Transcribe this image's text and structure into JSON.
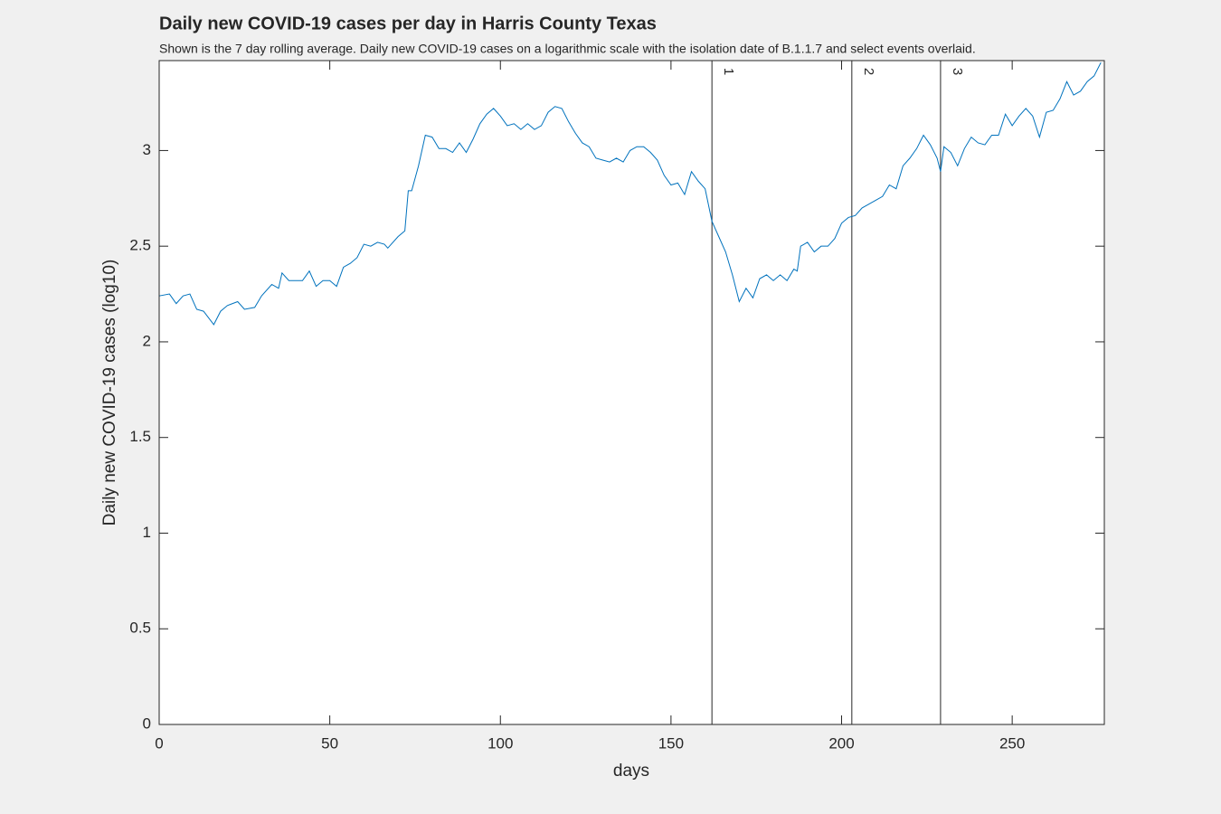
{
  "chart_data": {
    "type": "line",
    "title": "Daily new COVID-19 cases per day in Harris County Texas",
    "subtitle": "Shown is the 7 day rolling average. Daily new COVID-19 cases on a logarithmic scale with the isolation date of B.1.1.7 and select events overlaid.",
    "x_label": "days",
    "y_label": "Daily new COVID-19 cases (log10)",
    "xlim": [
      0,
      277
    ],
    "ylim": [
      0,
      3.47
    ],
    "xticks": [
      0,
      50,
      100,
      150,
      200,
      250
    ],
    "yticks": [
      0,
      0.5,
      1,
      1.5,
      2,
      2.5,
      3
    ],
    "events": [
      {
        "x": 162,
        "label": "1"
      },
      {
        "x": 203,
        "label": "2"
      },
      {
        "x": 229,
        "label": "3"
      }
    ],
    "series": [
      {
        "color": "#0072bd",
        "x": [
          0,
          3,
          5,
          7,
          9,
          11,
          13,
          16,
          18,
          20,
          23,
          25,
          28,
          30,
          33,
          35,
          36,
          38,
          40,
          42,
          44,
          46,
          48,
          50,
          52,
          54,
          56,
          58,
          60,
          62,
          64,
          66,
          67,
          70,
          72,
          73,
          74,
          76,
          78,
          80,
          82,
          84,
          86,
          88,
          90,
          92,
          94,
          96,
          98,
          100,
          102,
          104,
          106,
          108,
          110,
          112,
          114,
          116,
          118,
          120,
          122,
          124,
          126,
          128,
          130,
          132,
          134,
          136,
          138,
          140,
          142,
          144,
          146,
          148,
          150,
          152,
          154,
          156,
          158,
          160,
          162,
          164,
          166,
          168,
          170,
          172,
          174,
          176,
          178,
          180,
          182,
          184,
          186,
          187,
          188,
          190,
          192,
          194,
          196,
          198,
          200,
          202,
          204,
          206,
          208,
          210,
          212,
          214,
          216,
          218,
          220,
          222,
          224,
          226,
          228,
          229,
          230,
          232,
          234,
          236,
          238,
          240,
          242,
          244,
          246,
          248,
          250,
          252,
          254,
          256,
          258,
          260,
          262,
          264,
          266,
          268,
          270,
          272,
          274,
          276
        ],
        "values": [
          2.24,
          2.25,
          2.2,
          2.24,
          2.25,
          2.17,
          2.16,
          2.09,
          2.16,
          2.19,
          2.21,
          2.17,
          2.18,
          2.24,
          2.3,
          2.28,
          2.36,
          2.32,
          2.32,
          2.32,
          2.37,
          2.29,
          2.32,
          2.32,
          2.29,
          2.39,
          2.41,
          2.44,
          2.51,
          2.5,
          2.52,
          2.51,
          2.49,
          2.55,
          2.58,
          2.79,
          2.79,
          2.92,
          3.08,
          3.07,
          3.01,
          3.01,
          2.99,
          3.04,
          2.99,
          3.06,
          3.14,
          3.19,
          3.22,
          3.18,
          3.13,
          3.14,
          3.11,
          3.14,
          3.11,
          3.13,
          3.2,
          3.23,
          3.22,
          3.15,
          3.09,
          3.04,
          3.02,
          2.96,
          2.95,
          2.94,
          2.96,
          2.94,
          3.0,
          3.02,
          3.02,
          2.99,
          2.95,
          2.87,
          2.82,
          2.83,
          2.77,
          2.89,
          2.84,
          2.8,
          2.63,
          2.55,
          2.47,
          2.35,
          2.21,
          2.28,
          2.23,
          2.33,
          2.35,
          2.32,
          2.35,
          2.32,
          2.38,
          2.37,
          2.5,
          2.52,
          2.47,
          2.5,
          2.5,
          2.54,
          2.62,
          2.65,
          2.66,
          2.7,
          2.72,
          2.74,
          2.76,
          2.82,
          2.8,
          2.92,
          2.96,
          3.01,
          3.08,
          3.03,
          2.96,
          2.89,
          3.02,
          2.99,
          2.92,
          3.01,
          3.07,
          3.04,
          3.03,
          3.08,
          3.08,
          3.19,
          3.13,
          3.18,
          3.22,
          3.18,
          3.07,
          3.2,
          3.21,
          3.27,
          3.36,
          3.29,
          3.31,
          3.36,
          3.39,
          3.46
        ]
      }
    ]
  }
}
